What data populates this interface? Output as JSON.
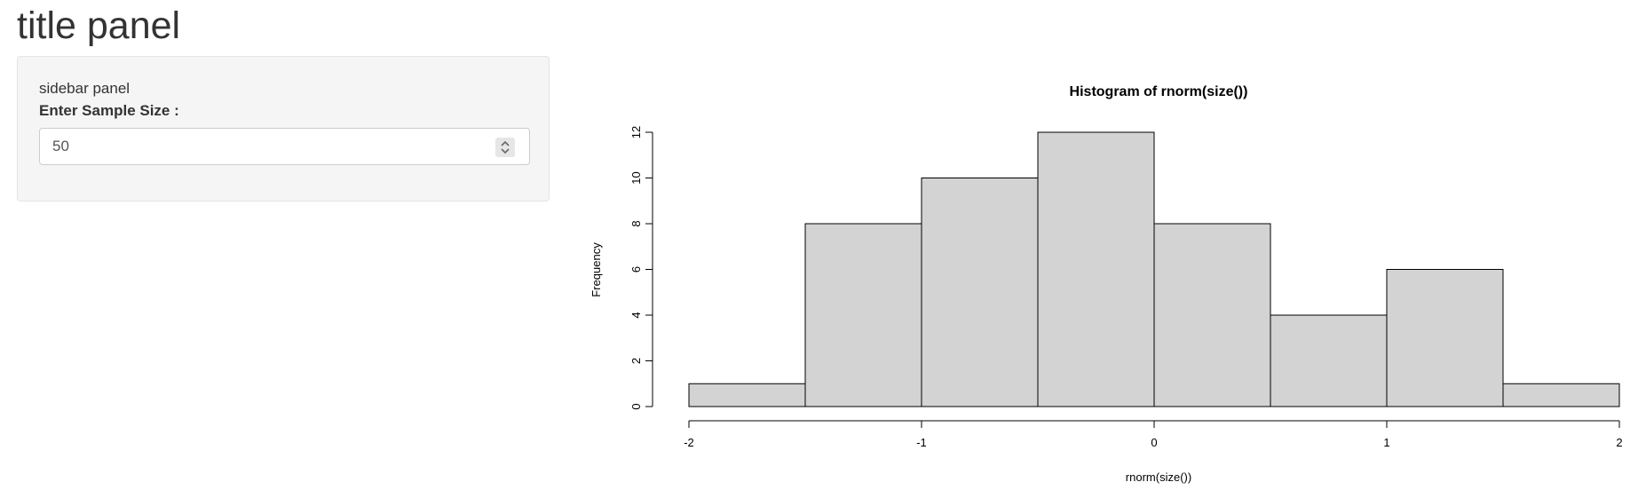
{
  "page": {
    "title": "title panel"
  },
  "sidebar": {
    "text": "sidebar panel",
    "sample_size_label": "Enter Sample Size :",
    "sample_size_value": "50",
    "spinner_icon": "chevron-up-down-icon"
  },
  "chart_data": {
    "type": "bar",
    "title": "Histogram of rnorm(size())",
    "xlabel": "rnorm(size())",
    "ylabel": "Frequency",
    "bin_edges": [
      -2,
      -1.5,
      -1,
      -0.5,
      0,
      0.5,
      1,
      1.5,
      2
    ],
    "values": [
      1,
      8,
      10,
      12,
      8,
      4,
      6,
      1
    ],
    "xlim": [
      -2,
      2
    ],
    "ylim": [
      0,
      12
    ],
    "x_ticks": [
      "-2",
      "-1",
      "0",
      "1",
      "2"
    ],
    "y_ticks": [
      "0",
      "2",
      "4",
      "6",
      "8",
      "10",
      "12"
    ],
    "bar_fill": "#d3d3d3",
    "bar_stroke": "#000000",
    "grid": false
  }
}
